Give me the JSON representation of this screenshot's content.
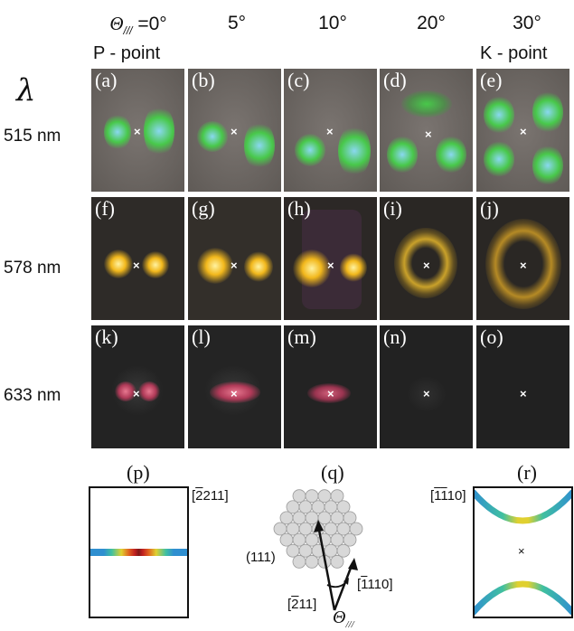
{
  "header": {
    "theta_symbol": "Θ",
    "theta_sub": "///",
    "theta_suffix": " =0°",
    "angles": [
      "5°",
      "10°",
      "20°",
      "30°"
    ],
    "p_point": "P - point",
    "k_point": "K - point",
    "lambda": "λ"
  },
  "rows": [
    {
      "wavelength": "515 nm",
      "labels": [
        "(a)",
        "(b)",
        "(c)",
        "(d)",
        "(e)"
      ]
    },
    {
      "wavelength": "578 nm",
      "labels": [
        "(f)",
        "(g)",
        "(h)",
        "(i)",
        "(j)"
      ]
    },
    {
      "wavelength": "633 nm",
      "labels": [
        "(k)",
        "(l)",
        "(m)",
        "(n)",
        "(o)"
      ]
    }
  ],
  "center_mark": "×",
  "bottom": {
    "p": {
      "label": "(p)",
      "direction": "211",
      "direction_bar": "2"
    },
    "q": {
      "label": "(q)",
      "plane": "(111)",
      "dir_a": "110",
      "dir_a_bar": "1",
      "dir_b": "11",
      "dir_b_bar": "2",
      "theta": "Θ",
      "theta_sub": "///"
    },
    "r": {
      "label": "(r)",
      "direction": "10",
      "direction_bar": "1",
      "direction_pre": "1"
    }
  },
  "colors": {
    "green_row_bg": "#6f6a66",
    "yellow_row_bg": "#2b2b2b",
    "red_row_bg": "#222222",
    "green_spot": "#3fc43a",
    "cyan_core": "#8ad8f0",
    "yellow_spot": "#f2b81c",
    "red_spot": "#d2506a",
    "band_blue": "#2f8fd0",
    "band_yellow": "#e0d030",
    "band_red": "#c02020"
  }
}
